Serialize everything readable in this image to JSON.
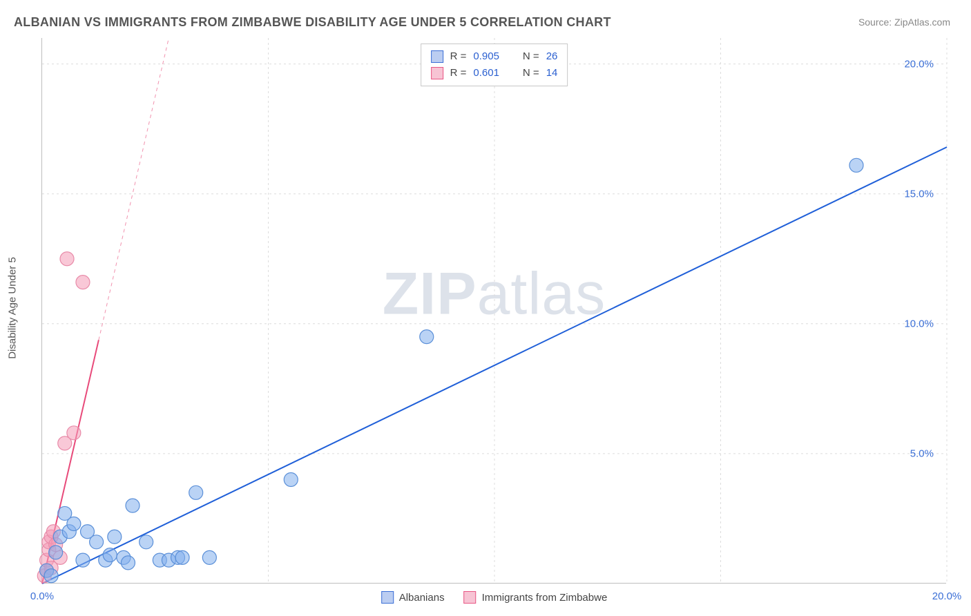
{
  "title": "ALBANIAN VS IMMIGRANTS FROM ZIMBABWE DISABILITY AGE UNDER 5 CORRELATION CHART",
  "source": "Source: ZipAtlas.com",
  "y_axis_label": "Disability Age Under 5",
  "watermark_a": "ZIP",
  "watermark_b": "atlas",
  "chart": {
    "type": "scatter-with-regression",
    "xlim": [
      0,
      20
    ],
    "ylim": [
      0,
      21
    ],
    "xticks": [
      0,
      20
    ],
    "yticks": [
      5,
      10,
      15,
      20
    ],
    "grid_x": [
      5,
      10,
      15,
      20
    ],
    "grid_y": [
      5,
      10,
      15,
      20
    ],
    "tick_format_x": [
      "0.0%",
      "20.0%"
    ],
    "tick_format_y": [
      "5.0%",
      "10.0%",
      "15.0%",
      "20.0%"
    ],
    "background_color": "#ffffff",
    "grid_color": "#dcdcdc",
    "axis_color": "#bdbdbd",
    "tick_color": "#3b6fd6",
    "title_fontsize": 18,
    "label_fontsize": 15,
    "marker_radius": 10,
    "marker_stroke_width": 1.2,
    "series": [
      {
        "name": "Albanians",
        "color_fill": "rgba(129,175,236,0.55)",
        "color_stroke": "#5a8fd8",
        "line_color": "#1f5fd8",
        "line_width": 2,
        "line_solid_end_x": 20,
        "line_dash_from_x": null,
        "R": "0.905",
        "N": "26",
        "slope": 0.84,
        "intercept": 0,
        "points": [
          [
            0.1,
            0.5
          ],
          [
            0.2,
            0.3
          ],
          [
            0.3,
            1.2
          ],
          [
            0.4,
            1.8
          ],
          [
            0.5,
            2.7
          ],
          [
            0.6,
            2.0
          ],
          [
            0.7,
            2.3
          ],
          [
            0.9,
            0.9
          ],
          [
            1.0,
            2.0
          ],
          [
            1.2,
            1.6
          ],
          [
            1.4,
            0.9
          ],
          [
            1.5,
            1.1
          ],
          [
            1.6,
            1.8
          ],
          [
            1.8,
            1.0
          ],
          [
            1.9,
            0.8
          ],
          [
            2.0,
            3.0
          ],
          [
            2.3,
            1.6
          ],
          [
            2.6,
            0.9
          ],
          [
            2.8,
            0.9
          ],
          [
            3.0,
            1.0
          ],
          [
            3.1,
            1.0
          ],
          [
            3.4,
            3.5
          ],
          [
            3.7,
            1.0
          ],
          [
            5.5,
            4.0
          ],
          [
            8.5,
            9.5
          ],
          [
            18.0,
            16.1
          ]
        ]
      },
      {
        "name": "Immigrants from Zimbabwe",
        "color_fill": "rgba(244,154,182,0.55)",
        "color_stroke": "#e88aa8",
        "line_color": "#e84a7a",
        "line_width": 2,
        "line_solid_end_x": 1.25,
        "line_dash_from_x": 1.25,
        "R": "0.601",
        "N": "14",
        "slope": 7.5,
        "intercept": 0,
        "points": [
          [
            0.05,
            0.3
          ],
          [
            0.1,
            0.5
          ],
          [
            0.1,
            0.9
          ],
          [
            0.15,
            1.3
          ],
          [
            0.15,
            1.6
          ],
          [
            0.2,
            0.6
          ],
          [
            0.2,
            1.8
          ],
          [
            0.25,
            2.0
          ],
          [
            0.3,
            1.5
          ],
          [
            0.4,
            1.0
          ],
          [
            0.5,
            5.4
          ],
          [
            0.55,
            12.5
          ],
          [
            0.7,
            5.8
          ],
          [
            0.9,
            11.6
          ]
        ]
      }
    ]
  },
  "legend_top": {
    "rows": [
      {
        "swatch": "blue",
        "R_label": "R =",
        "R_val": "0.905",
        "N_label": "N =",
        "N_val": "26"
      },
      {
        "swatch": "pink",
        "R_label": "R =",
        "R_val": "0.601",
        "N_label": "N =",
        "N_val": "14"
      }
    ]
  },
  "legend_bottom": {
    "items": [
      {
        "swatch": "blue",
        "label": "Albanians"
      },
      {
        "swatch": "pink",
        "label": "Immigrants from Zimbabwe"
      }
    ]
  }
}
